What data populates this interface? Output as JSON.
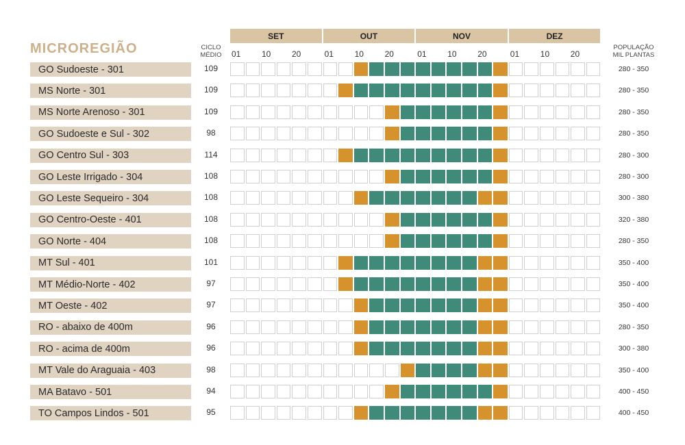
{
  "colors": {
    "label_bg": "#e0d3c1",
    "month_bg": "#d9c4a4",
    "title": "#cdb08a",
    "edge": "#d6922d",
    "core": "#3f8a78",
    "empty_border": "#cfcfcf"
  },
  "chart_data": {
    "type": "table",
    "title": "MICROREGIÃO",
    "cycle_header": [
      "CICLO",
      "MÉDIO"
    ],
    "population_header": [
      "POPULAÇÃO",
      "MIL PLANTAS"
    ],
    "months": [
      "SET",
      "OUT",
      "NOV",
      "DEZ"
    ],
    "tick_labels": [
      "01",
      "10",
      "20"
    ],
    "periods_per_month": 6,
    "legend_note": "Each month divided into 6 periods; cells: 0 = none, 1 = edge window (orange), 2 = recommended window (green)",
    "rows": [
      {
        "name": "GO Sudoeste - 301",
        "cycle": "109",
        "population": "280 - 350",
        "cells": [
          0,
          0,
          0,
          0,
          0,
          0,
          0,
          0,
          1,
          2,
          2,
          2,
          2,
          2,
          2,
          2,
          2,
          1,
          0,
          0,
          0,
          0,
          0,
          0
        ]
      },
      {
        "name": "MS Norte - 301",
        "cycle": "109",
        "population": "280 - 350",
        "cells": [
          0,
          0,
          0,
          0,
          0,
          0,
          0,
          1,
          2,
          2,
          2,
          2,
          2,
          2,
          2,
          2,
          2,
          1,
          0,
          0,
          0,
          0,
          0,
          0
        ]
      },
      {
        "name": "MS Norte Arenoso - 301",
        "cycle": "109",
        "population": "280 - 350",
        "cells": [
          0,
          0,
          0,
          0,
          0,
          0,
          0,
          0,
          0,
          0,
          1,
          2,
          2,
          2,
          2,
          2,
          2,
          1,
          0,
          0,
          0,
          0,
          0,
          0
        ]
      },
      {
        "name": "GO Sudoeste e Sul - 302",
        "cycle": "98",
        "population": "280 - 350",
        "cells": [
          0,
          0,
          0,
          0,
          0,
          0,
          0,
          0,
          0,
          0,
          1,
          2,
          2,
          2,
          2,
          2,
          2,
          1,
          0,
          0,
          0,
          0,
          0,
          0
        ]
      },
      {
        "name": "GO Centro Sul - 303",
        "cycle": "114",
        "population": "280 - 300",
        "cells": [
          0,
          0,
          0,
          0,
          0,
          0,
          0,
          1,
          2,
          2,
          2,
          2,
          2,
          2,
          2,
          2,
          2,
          1,
          0,
          0,
          0,
          0,
          0,
          0
        ]
      },
      {
        "name": "GO Leste Irrigado - 304",
        "cycle": "108",
        "population": "280 - 300",
        "cells": [
          0,
          0,
          0,
          0,
          0,
          0,
          0,
          0,
          0,
          0,
          1,
          2,
          2,
          2,
          2,
          2,
          2,
          1,
          0,
          0,
          0,
          0,
          0,
          0
        ]
      },
      {
        "name": "GO Leste Sequeiro - 304",
        "cycle": "108",
        "population": "300 - 380",
        "cells": [
          0,
          0,
          0,
          0,
          0,
          0,
          0,
          0,
          1,
          2,
          2,
          2,
          2,
          2,
          2,
          2,
          1,
          1,
          0,
          0,
          0,
          0,
          0,
          0
        ]
      },
      {
        "name": "GO Centro-Oeste - 401",
        "cycle": "108",
        "population": "320 - 380",
        "cells": [
          0,
          0,
          0,
          0,
          0,
          0,
          0,
          0,
          0,
          0,
          1,
          2,
          2,
          2,
          2,
          2,
          2,
          1,
          0,
          0,
          0,
          0,
          0,
          0
        ]
      },
      {
        "name": "GO Norte - 404",
        "cycle": "108",
        "population": "280 - 350",
        "cells": [
          0,
          0,
          0,
          0,
          0,
          0,
          0,
          0,
          0,
          0,
          1,
          2,
          2,
          2,
          2,
          2,
          2,
          1,
          0,
          0,
          0,
          0,
          0,
          0
        ]
      },
      {
        "name": "MT Sul - 401",
        "cycle": "101",
        "population": "350 - 400",
        "cells": [
          0,
          0,
          0,
          0,
          0,
          0,
          0,
          1,
          2,
          2,
          2,
          2,
          2,
          2,
          2,
          2,
          1,
          1,
          0,
          0,
          0,
          0,
          0,
          0
        ]
      },
      {
        "name": "MT Médio-Norte - 402",
        "cycle": "97",
        "population": "350 - 400",
        "cells": [
          0,
          0,
          0,
          0,
          0,
          0,
          0,
          1,
          2,
          2,
          2,
          2,
          2,
          2,
          2,
          2,
          1,
          1,
          0,
          0,
          0,
          0,
          0,
          0
        ]
      },
      {
        "name": "MT Oeste - 402",
        "cycle": "97",
        "population": "350 - 400",
        "cells": [
          0,
          0,
          0,
          0,
          0,
          0,
          0,
          0,
          1,
          2,
          2,
          2,
          2,
          2,
          2,
          2,
          1,
          1,
          0,
          0,
          0,
          0,
          0,
          0
        ]
      },
      {
        "name": "RO - abaixo de 400m",
        "cycle": "96",
        "population": "280 - 350",
        "cells": [
          0,
          0,
          0,
          0,
          0,
          0,
          0,
          0,
          1,
          2,
          2,
          2,
          2,
          2,
          2,
          2,
          1,
          1,
          0,
          0,
          0,
          0,
          0,
          0
        ]
      },
      {
        "name": "RO - acima de 400m",
        "cycle": "96",
        "population": "300 - 380",
        "cells": [
          0,
          0,
          0,
          0,
          0,
          0,
          0,
          0,
          1,
          2,
          2,
          2,
          2,
          2,
          2,
          2,
          1,
          1,
          0,
          0,
          0,
          0,
          0,
          0
        ]
      },
      {
        "name": "MT Vale do Araguaia - 403",
        "cycle": "98",
        "population": "350 - 400",
        "cells": [
          0,
          0,
          0,
          0,
          0,
          0,
          0,
          0,
          0,
          0,
          0,
          1,
          2,
          2,
          2,
          2,
          1,
          1,
          0,
          0,
          0,
          0,
          0,
          0
        ]
      },
      {
        "name": "MA Batavo - 501",
        "cycle": "94",
        "population": "400 - 450",
        "cells": [
          0,
          0,
          0,
          0,
          0,
          0,
          0,
          0,
          0,
          0,
          1,
          2,
          2,
          2,
          2,
          2,
          2,
          1,
          0,
          0,
          0,
          0,
          0,
          0
        ]
      },
      {
        "name": "TO Campos Lindos - 501",
        "cycle": "95",
        "population": "400 - 450",
        "cells": [
          0,
          0,
          0,
          0,
          0,
          0,
          0,
          0,
          1,
          2,
          2,
          2,
          2,
          2,
          2,
          2,
          1,
          1,
          0,
          0,
          0,
          0,
          0,
          0
        ]
      }
    ]
  }
}
